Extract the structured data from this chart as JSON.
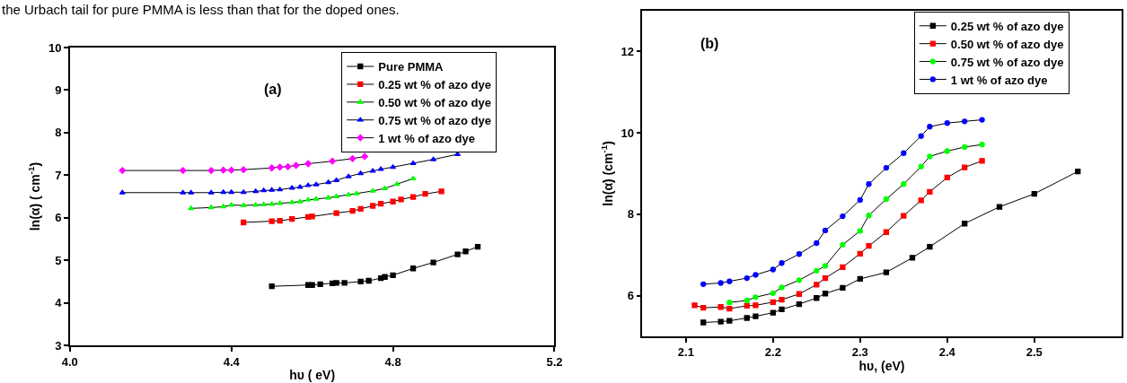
{
  "chart_data": [
    {
      "type": "line",
      "legend": "top right",
      "annotations": [
        "the Urbach tail for pure PMMA is less than that for the doped ones.",
        "(a)"
      ],
      "xlabel": "hυ ( eV)",
      "ylabel": "ln(α) ( cm$^{-1}$)",
      "xlim": [
        4.0,
        5.2
      ],
      "xticks": [
        {
          "value": 4.0,
          "label": "4.0"
        },
        4.4,
        4.8,
        5.2
      ],
      "ylim": [
        3,
        10
      ],
      "yticks": [
        3,
        4,
        5,
        6,
        7,
        8,
        9,
        10
      ],
      "series": [
        {
          "name": "Pure PMMA",
          "color": "#000000",
          "marker": "square",
          "x": [
            4.5,
            4.59,
            4.6,
            4.62,
            4.65,
            4.66,
            4.68,
            4.72,
            4.74,
            4.77,
            4.78,
            4.8,
            4.85,
            4.9,
            4.96,
            4.98,
            5.01
          ],
          "values": [
            4.39,
            4.42,
            4.42,
            4.44,
            4.46,
            4.47,
            4.47,
            4.5,
            4.52,
            4.58,
            4.61,
            4.65,
            4.81,
            4.95,
            5.14,
            5.21,
            5.32
          ]
        },
        {
          "name": "0.25 wt % of azo dye",
          "color": "#ff0000",
          "marker": "square",
          "x": [
            4.43,
            4.5,
            4.52,
            4.55,
            4.59,
            4.6,
            4.66,
            4.7,
            4.72,
            4.75,
            4.77,
            4.8,
            4.82,
            4.85,
            4.88,
            4.92
          ],
          "values": [
            5.89,
            5.92,
            5.93,
            5.97,
            6.02,
            6.03,
            6.11,
            6.16,
            6.21,
            6.28,
            6.33,
            6.38,
            6.43,
            6.49,
            6.56,
            6.62
          ]
        },
        {
          "name": "0.50 wt % of azo dye",
          "color": "#00ff00",
          "marker": "triangle",
          "x": [
            4.3,
            4.35,
            4.38,
            4.4,
            4.43,
            4.46,
            4.48,
            4.5,
            4.52,
            4.55,
            4.57,
            4.59,
            4.61,
            4.64,
            4.66,
            4.69,
            4.71,
            4.75,
            4.78,
            4.81,
            4.85
          ],
          "values": [
            6.22,
            6.24,
            6.26,
            6.3,
            6.29,
            6.3,
            6.31,
            6.32,
            6.34,
            6.36,
            6.38,
            6.42,
            6.44,
            6.47,
            6.5,
            6.54,
            6.57,
            6.63,
            6.69,
            6.79,
            6.92
          ]
        },
        {
          "name": "0.75 wt % of azo dye",
          "color": "#0000ff",
          "marker": "triangle",
          "x": [
            4.13,
            4.28,
            4.3,
            4.35,
            4.38,
            4.4,
            4.43,
            4.46,
            4.48,
            4.5,
            4.52,
            4.55,
            4.57,
            4.59,
            4.61,
            4.64,
            4.66,
            4.69,
            4.72,
            4.75,
            4.77,
            4.8,
            4.85,
            4.9,
            4.96
          ],
          "values": [
            6.59,
            6.59,
            6.59,
            6.59,
            6.6,
            6.6,
            6.6,
            6.62,
            6.64,
            6.65,
            6.66,
            6.7,
            6.72,
            6.76,
            6.78,
            6.83,
            6.88,
            6.97,
            7.04,
            7.1,
            7.14,
            7.19,
            7.28,
            7.37,
            7.49
          ]
        },
        {
          "name": "1 wt % of azo dye",
          "color": "#ff00ff",
          "marker": "diamond",
          "x": [
            4.13,
            4.28,
            4.35,
            4.38,
            4.4,
            4.43,
            4.5,
            4.52,
            4.54,
            4.56,
            4.59,
            4.65,
            4.7,
            4.73
          ],
          "values": [
            7.11,
            7.11,
            7.11,
            7.12,
            7.12,
            7.13,
            7.17,
            7.19,
            7.2,
            7.23,
            7.27,
            7.33,
            7.39,
            7.44
          ]
        }
      ]
    },
    {
      "type": "line",
      "legend": "top right",
      "annotations": [
        "(b)"
      ],
      "xlabel": "hυ, (eV)",
      "ylabel": "ln(α) (cm$^{-1}$)",
      "xlim": [
        2.05,
        2.6
      ],
      "xticks": [
        2.1,
        2.2,
        2.3,
        2.4,
        2.5
      ],
      "ylim": [
        5.0,
        13.0
      ],
      "yticks": [
        6,
        8,
        10,
        12
      ],
      "series": [
        {
          "name": "0.25 wt % of azo dye",
          "color": "#000000",
          "marker": "square",
          "x": [
            2.12,
            2.14,
            2.15,
            2.17,
            2.18,
            2.2,
            2.21,
            2.23,
            2.25,
            2.26,
            2.28,
            2.3,
            2.33,
            2.36,
            2.38,
            2.42,
            2.46,
            2.5,
            2.55
          ],
          "values": [
            5.34,
            5.36,
            5.38,
            5.45,
            5.49,
            5.58,
            5.66,
            5.79,
            5.94,
            6.05,
            6.19,
            6.41,
            6.57,
            6.93,
            7.2,
            7.77,
            8.18,
            8.5,
            9.05
          ]
        },
        {
          "name": "0.50 wt % of azo dye",
          "color": "#ff0000",
          "marker": "square",
          "x": [
            2.11,
            2.12,
            2.14,
            2.15,
            2.17,
            2.18,
            2.2,
            2.21,
            2.23,
            2.25,
            2.26,
            2.28,
            2.3,
            2.31,
            2.33,
            2.35,
            2.37,
            2.38,
            2.4,
            2.42,
            2.44
          ],
          "values": [
            5.76,
            5.7,
            5.72,
            5.68,
            5.75,
            5.76,
            5.84,
            5.9,
            6.04,
            6.27,
            6.43,
            6.7,
            7.03,
            7.22,
            7.56,
            7.96,
            8.34,
            8.55,
            8.9,
            9.15,
            9.31
          ]
        },
        {
          "name": "0.75 wt % of azo dye",
          "color": "#00ff00",
          "marker": "circle",
          "x": [
            2.15,
            2.17,
            2.18,
            2.2,
            2.21,
            2.23,
            2.25,
            2.26,
            2.28,
            2.3,
            2.31,
            2.33,
            2.35,
            2.37,
            2.38,
            2.4,
            2.42,
            2.44
          ],
          "values": [
            5.83,
            5.88,
            5.96,
            6.06,
            6.2,
            6.38,
            6.61,
            6.73,
            7.25,
            7.59,
            7.97,
            8.37,
            8.74,
            9.17,
            9.42,
            9.55,
            9.65,
            9.71
          ]
        },
        {
          "name": "1 wt % of azo dye",
          "color": "#0000ff",
          "marker": "circle",
          "x": [
            2.12,
            2.14,
            2.15,
            2.17,
            2.18,
            2.2,
            2.21,
            2.23,
            2.25,
            2.26,
            2.28,
            2.3,
            2.31,
            2.33,
            2.35,
            2.37,
            2.38,
            2.4,
            2.42,
            2.44
          ],
          "values": [
            6.28,
            6.31,
            6.35,
            6.43,
            6.51,
            6.64,
            6.8,
            7.02,
            7.29,
            7.6,
            7.95,
            8.35,
            8.74,
            9.14,
            9.5,
            9.92,
            10.15,
            10.24,
            10.28,
            10.32
          ]
        }
      ]
    }
  ]
}
